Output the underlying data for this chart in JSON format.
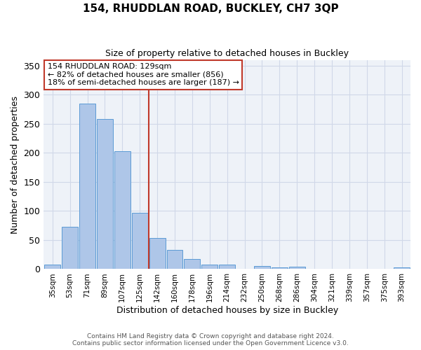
{
  "title": "154, RHUDDLAN ROAD, BUCKLEY, CH7 3QP",
  "subtitle": "Size of property relative to detached houses in Buckley",
  "xlabel": "Distribution of detached houses by size in Buckley",
  "ylabel": "Number of detached properties",
  "categories": [
    "35sqm",
    "53sqm",
    "71sqm",
    "89sqm",
    "107sqm",
    "125sqm",
    "142sqm",
    "160sqm",
    "178sqm",
    "196sqm",
    "214sqm",
    "232sqm",
    "250sqm",
    "268sqm",
    "286sqm",
    "304sqm",
    "321sqm",
    "339sqm",
    "357sqm",
    "375sqm",
    "393sqm"
  ],
  "values": [
    8,
    73,
    285,
    258,
    203,
    97,
    53,
    33,
    18,
    8,
    8,
    0,
    5,
    3,
    4,
    0,
    0,
    0,
    0,
    0,
    3
  ],
  "bar_color": "#aec6e8",
  "bar_edge_color": "#5b9bd5",
  "grid_color": "#d0d8e8",
  "bg_color": "#eef2f8",
  "vline_color": "#c0392b",
  "annotation_line1": "154 RHUDDLAN ROAD: 129sqm",
  "annotation_line2": "← 82% of detached houses are smaller (856)",
  "annotation_line3": "18% of semi-detached houses are larger (187) →",
  "annotation_box_color": "#ffffff",
  "annotation_box_edge": "#c0392b",
  "ylim": [
    0,
    360
  ],
  "yticks": [
    0,
    50,
    100,
    150,
    200,
    250,
    300,
    350
  ],
  "footer1": "Contains HM Land Registry data © Crown copyright and database right 2024.",
  "footer2": "Contains public sector information licensed under the Open Government Licence v3.0."
}
